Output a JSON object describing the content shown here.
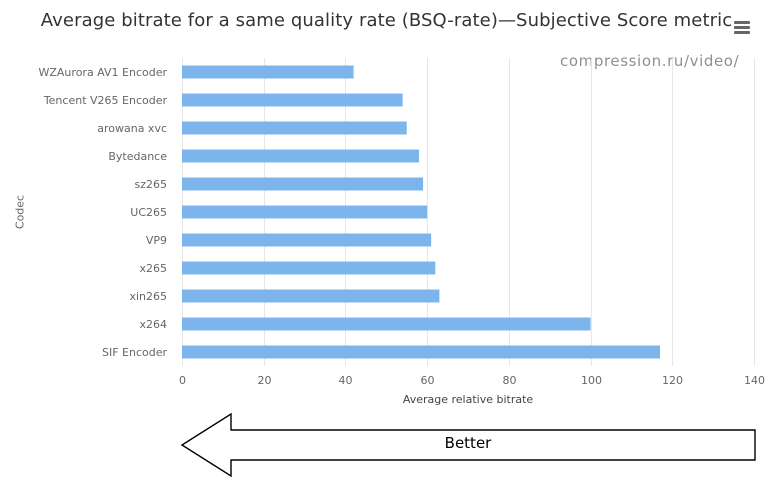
{
  "chart_data": {
    "type": "bar",
    "orientation": "horizontal",
    "title": "Average bitrate for a same quality rate (BSQ-rate)—Subjective Score metric",
    "watermark": "compression.ru/video/",
    "xlabel": "Average relative bitrate",
    "ylabel": "Codec",
    "xlim": [
      0,
      140
    ],
    "xticks": [
      "0",
      "20",
      "40",
      "60",
      "80",
      "100",
      "120",
      "140"
    ],
    "grid": true,
    "bar_color": "#7cb5ec",
    "categories": [
      "WZAurora AV1 Encoder",
      "Tencent V265 Encoder",
      "arowana xvc",
      "Bytedance",
      "sz265",
      "UC265",
      "VP9",
      "x265",
      "xin265",
      "x264",
      "SIF Encoder"
    ],
    "values": [
      42,
      54,
      55,
      58,
      59,
      60,
      61,
      62,
      63,
      100,
      117
    ]
  },
  "annotation": {
    "arrow_label": "Better",
    "direction": "left"
  },
  "menu": {
    "icon": "hamburger-menu-icon"
  }
}
